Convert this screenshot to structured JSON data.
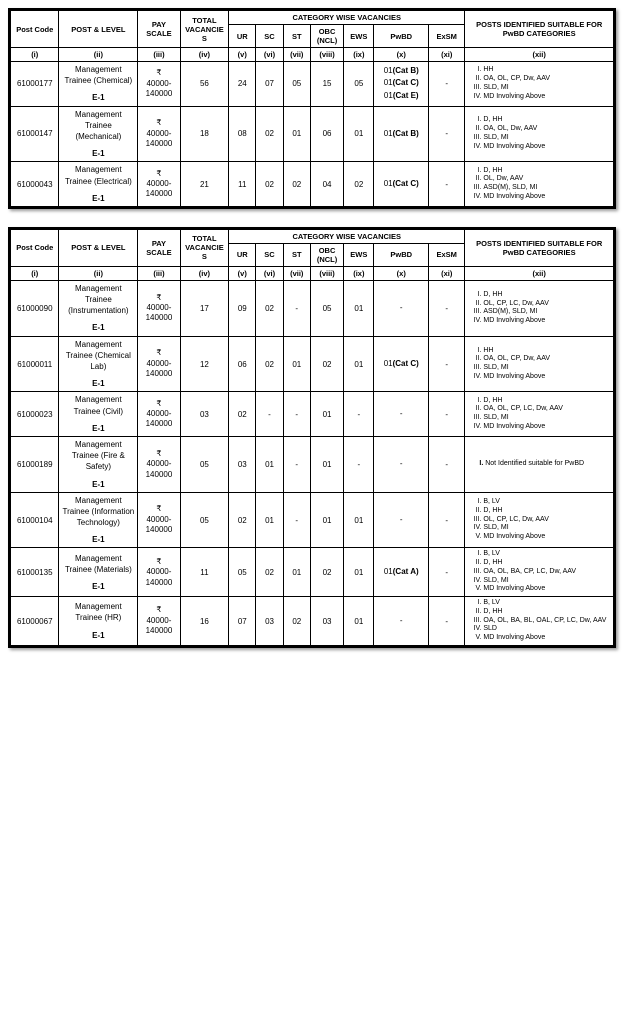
{
  "headers": {
    "postCode": "Post Code",
    "postLevel": "POST & LEVEL",
    "payScale": "PAY SCALE",
    "totalVac": "TOTAL VACANCIES",
    "catWise": "CATEGORY WISE VACANCIES",
    "suitable": "POSTS IDENTIFIED SUITABLE FOR PwBD CATEGORIES",
    "ur": "UR",
    "sc": "SC",
    "st": "ST",
    "obc": "OBC (NCL)",
    "ews": "EWS",
    "pwbd": "PwBD",
    "exsm": "ExSM"
  },
  "roman": [
    "(i)",
    "(ii)",
    "(iii)",
    "(iv)",
    "(v)",
    "(vi)",
    "(vii)",
    "(viii)",
    "(ix)",
    "(x)",
    "(xi)",
    "(xii)"
  ],
  "table1": [
    {
      "code": "61000177",
      "post": "Management Trainee (Chemical)",
      "level": "E-1",
      "pay": "₹ 40000-140000",
      "total": "56",
      "ur": "24",
      "sc": "07",
      "st": "05",
      "obc": "15",
      "ews": "05",
      "pwbd": [
        "01(Cat B)",
        "01(Cat C)",
        "01(Cat E)"
      ],
      "exsm": "-",
      "suitable": [
        "HH",
        "OA, OL, CP, Dw, AAV",
        "SLD, MI",
        "MD Involving Above"
      ]
    },
    {
      "code": "61000147",
      "post": "Management Trainee (Mechanical)",
      "level": "E-1",
      "pay": "₹ 40000-140000",
      "total": "18",
      "ur": "08",
      "sc": "02",
      "st": "01",
      "obc": "06",
      "ews": "01",
      "pwbd": [
        "01(Cat B)"
      ],
      "exsm": "-",
      "suitable": [
        "D, HH",
        "OA, OL, Dw, AAV",
        "SLD, MI",
        "MD Involving Above"
      ]
    },
    {
      "code": "61000043",
      "post": "Management Trainee (Electrical)",
      "level": "E-1",
      "pay": "₹ 40000-140000",
      "total": "21",
      "ur": "11",
      "sc": "02",
      "st": "02",
      "obc": "04",
      "ews": "02",
      "pwbd": [
        "01(Cat C)"
      ],
      "exsm": "-",
      "suitable": [
        "D, HH",
        "OL, Dw, AAV",
        "ASD(M), SLD, MI",
        "MD Involving Above"
      ]
    }
  ],
  "table2": [
    {
      "code": "61000090",
      "post": "Management Trainee (Instrumentation)",
      "level": "E-1",
      "pay": "₹ 40000-140000",
      "total": "17",
      "ur": "09",
      "sc": "02",
      "st": "-",
      "obc": "05",
      "ews": "01",
      "pwbd": [
        "-"
      ],
      "exsm": "-",
      "suitable": [
        "D, HH",
        "OL, CP, LC, Dw, AAV",
        "ASD(M), SLD, MI",
        "MD Involving Above"
      ]
    },
    {
      "code": "61000011",
      "post": "Management Trainee (Chemical Lab)",
      "level": "E-1",
      "pay": "₹ 40000-140000",
      "total": "12",
      "ur": "06",
      "sc": "02",
      "st": "01",
      "obc": "02",
      "ews": "01",
      "pwbd": [
        "01(Cat C)"
      ],
      "exsm": "-",
      "suitable": [
        "HH",
        "OA, OL, CP, Dw, AAV",
        "SLD, MI",
        "MD Involving Above"
      ]
    },
    {
      "code": "61000023",
      "post": "Management Trainee (Civil)",
      "level": "E-1",
      "pay": "₹ 40000-140000",
      "total": "03",
      "ur": "02",
      "sc": "-",
      "st": "-",
      "obc": "01",
      "ews": "-",
      "pwbd": [
        "-"
      ],
      "exsm": "-",
      "suitable": [
        "D, HH",
        "OA, OL, CP, LC, Dw, AAV",
        "SLD, MI",
        "MD Involving Above"
      ]
    },
    {
      "code": "61000189",
      "post": "Management Trainee (Fire & Safety)",
      "level": "E-1",
      "pay": "₹ 40000-140000",
      "total": "05",
      "ur": "03",
      "sc": "01",
      "st": "-",
      "obc": "01",
      "ews": "-",
      "pwbd": [
        "-"
      ],
      "exsm": "-",
      "suitablePlain": "Not Identified suitable for PwBD"
    },
    {
      "code": "61000104",
      "post": "Management Trainee (Information Technology)",
      "level": "E-1",
      "pay": "₹ 40000-140000",
      "total": "05",
      "ur": "02",
      "sc": "01",
      "st": "-",
      "obc": "01",
      "ews": "01",
      "pwbd": [
        "-"
      ],
      "exsm": "-",
      "suitable": [
        "B, LV",
        "D, HH",
        "OL, CP, LC, Dw, AAV",
        "SLD, MI",
        "MD Involving Above"
      ]
    },
    {
      "code": "61000135",
      "post": "Management Trainee (Materials)",
      "level": "E-1",
      "pay": "₹ 40000-140000",
      "total": "11",
      "ur": "05",
      "sc": "02",
      "st": "01",
      "obc": "02",
      "ews": "01",
      "pwbd": [
        "01(Cat A)"
      ],
      "exsm": "-",
      "suitable": [
        "B, LV",
        "D, HH",
        "OA, OL, BA, CP, LC, Dw, AAV",
        "SLD, MI",
        "MD Involving Above"
      ]
    },
    {
      "code": "61000067",
      "post": "Management Trainee (HR)",
      "level": "E-1",
      "pay": "₹ 40000-140000",
      "total": "16",
      "ur": "07",
      "sc": "03",
      "st": "02",
      "obc": "03",
      "ews": "01",
      "pwbd": [
        "-"
      ],
      "exsm": "-",
      "suitable": [
        "B, LV",
        "D, HH",
        "OA, OL, BA, BL, OAL, CP, LC, Dw, AAV",
        "SLD",
        "MD Involving Above"
      ]
    }
  ]
}
